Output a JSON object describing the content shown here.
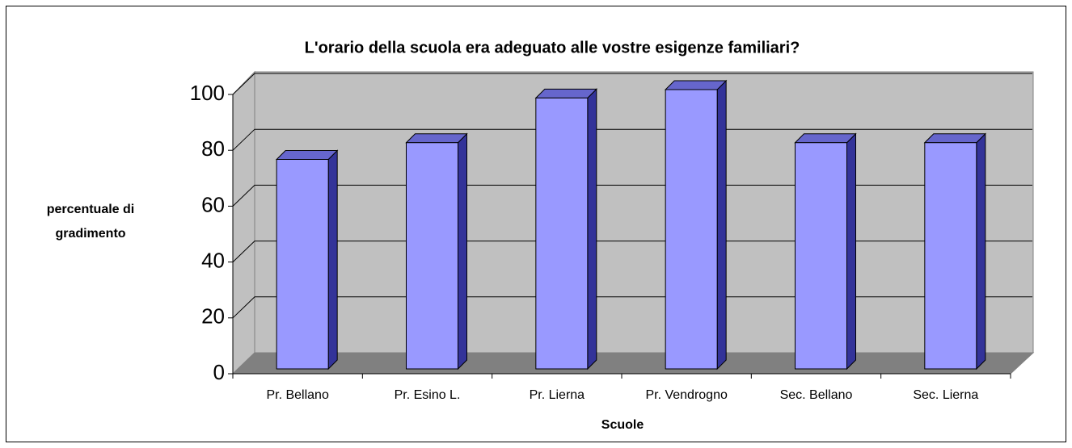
{
  "chart_data": {
    "type": "bar3d",
    "title": "L'orario della scuola era adeguato alle vostre esigenze familiari?",
    "x_label": "Scuole",
    "y_label": [
      "percentuale di",
      "gradimento"
    ],
    "categories": [
      "Pr. Bellano",
      "Pr. Esino L.",
      "Pr. Lierna",
      "Pr. Vendrogno",
      "Sec. Bellano",
      "Sec. Lierna"
    ],
    "values": [
      75,
      81,
      97,
      100,
      81,
      81
    ],
    "color": "#9999ff",
    "ylim": [
      0,
      100
    ],
    "yticks": [
      0,
      20,
      40,
      60,
      80,
      100
    ],
    "grid": true
  }
}
